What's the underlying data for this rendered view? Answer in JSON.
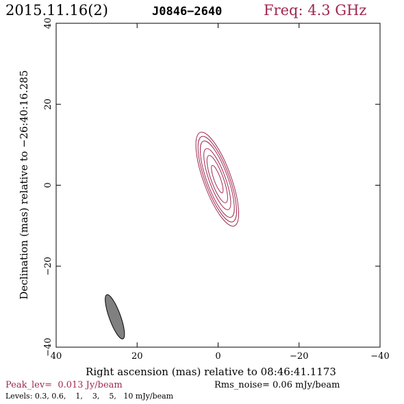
{
  "header": {
    "date": "2015.11.16(2)",
    "source": "J0846−2640",
    "frequency": "Freq: 4.3 GHz"
  },
  "footer": {
    "peak": "Peak_lev=  0.013 Jy/beam",
    "rms": "Rms_noise= 0.06 mJy/beam",
    "levels": "Levels: 0.3, 0.6,    1,    3,    5,   10 mJy/beam"
  },
  "colors": {
    "contour": "#a0284e",
    "beam_fill": "#808080",
    "frame": "#000000"
  },
  "chart_data": {
    "type": "contour",
    "xlabel": "Right ascension (mas) relative to 08:46:41.1173",
    "ylabel": "Declination (mas) relative to −26:40:16.285",
    "xlim": [
      40,
      -40
    ],
    "ylim": [
      -40,
      40
    ],
    "x_ticks": [
      40,
      20,
      0,
      -20,
      -40
    ],
    "y_ticks": [
      -40,
      -20,
      0,
      20,
      40
    ],
    "x_tick_labels": [
      "40",
      "20",
      "0",
      "−20",
      "−40"
    ],
    "y_tick_labels": [
      "−40",
      "−20",
      "0",
      "20",
      "40"
    ],
    "levels_mJy": [
      0.3,
      0.6,
      1,
      3,
      5,
      10
    ],
    "peak_Jy_per_beam": 0.013,
    "rms_mJy_per_beam": 0.06,
    "contours": [
      {
        "level": 0.3,
        "center": [
          0.2,
          1.5
        ],
        "semi_major": 12.3,
        "semi_minor": 3.4,
        "pa_deg": 20
      },
      {
        "level": 0.6,
        "center": [
          0.2,
          1.5
        ],
        "semi_major": 11.2,
        "semi_minor": 3.0,
        "pa_deg": 20
      },
      {
        "level": 1,
        "center": [
          0.2,
          1.5
        ],
        "semi_major": 10.0,
        "semi_minor": 2.6,
        "pa_deg": 20
      },
      {
        "level": 3,
        "center": [
          0.2,
          1.5
        ],
        "semi_major": 8.0,
        "semi_minor": 2.0,
        "pa_deg": 20
      },
      {
        "level": 5,
        "center": [
          0.2,
          1.5
        ],
        "semi_major": 6.2,
        "semi_minor": 1.5,
        "pa_deg": 20
      },
      {
        "level": 10,
        "center": [
          0.2,
          1.5
        ],
        "semi_major": 3.6,
        "semi_minor": 0.8,
        "pa_deg": 20
      }
    ],
    "beam": {
      "center": [
        25.5,
        -32.5
      ],
      "semi_major": 5.8,
      "semi_minor": 1.4,
      "pa_deg": 20
    }
  }
}
